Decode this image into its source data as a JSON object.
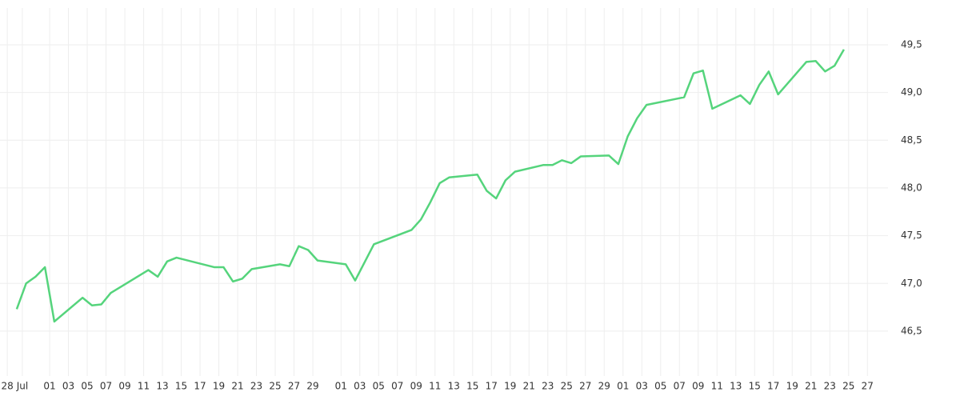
{
  "chart_data": {
    "type": "line",
    "x": [
      -3.5,
      -2.5,
      -1.5,
      -0.5,
      0.5,
      3.5,
      4.5,
      5.5,
      6.5,
      7.5,
      10.5,
      11.5,
      12.5,
      13.5,
      17.5,
      18.5,
      19.5,
      20.5,
      21.5,
      24.5,
      25.5,
      26.5,
      27.5,
      28.5,
      31.5,
      32.5,
      34.5,
      38.5,
      39.5,
      40.5,
      41.5,
      42.5,
      45.5,
      46.5,
      47.5,
      48.5,
      49.5,
      52.5,
      53.5,
      54.5,
      55.5,
      56.5,
      59.5,
      60.5,
      61.5,
      62.5,
      63.5,
      67.5,
      68.5,
      69.5,
      70.5,
      73.5,
      74.5,
      75.5,
      76.5,
      77.5,
      80.5,
      81.5,
      82.5,
      83.5,
      84.5
    ],
    "series": [
      {
        "color": "#55d47c",
        "values": [
          46.73,
          47.0,
          47.07,
          47.17,
          46.6,
          46.85,
          46.77,
          46.78,
          46.9,
          46.96,
          47.14,
          47.07,
          47.23,
          47.27,
          47.17,
          47.17,
          47.02,
          47.05,
          47.15,
          47.2,
          47.18,
          47.39,
          47.35,
          47.24,
          47.2,
          47.03,
          47.41,
          47.56,
          47.67,
          47.85,
          48.05,
          48.11,
          48.14,
          47.97,
          47.89,
          48.08,
          48.17,
          48.24,
          48.24,
          48.29,
          48.26,
          48.33,
          48.34,
          48.25,
          48.54,
          48.73,
          48.87,
          48.95,
          49.2,
          49.23,
          48.83,
          48.97,
          48.88,
          49.08,
          49.22,
          48.98,
          49.32,
          49.33,
          49.22,
          49.28,
          49.45
        ]
      }
    ],
    "xlim": [
      -5.28,
      89.19
    ],
    "xticks": [
      {
        "value": -4.5,
        "label": "28"
      },
      {
        "value": -2.9,
        "label": "Jul"
      },
      {
        "value": 0,
        "label": "01"
      },
      {
        "value": 2,
        "label": "03"
      },
      {
        "value": 4,
        "label": "05"
      },
      {
        "value": 6,
        "label": "07"
      },
      {
        "value": 8,
        "label": "09"
      },
      {
        "value": 10,
        "label": "11"
      },
      {
        "value": 12,
        "label": "13"
      },
      {
        "value": 14,
        "label": "15"
      },
      {
        "value": 16,
        "label": "17"
      },
      {
        "value": 18,
        "label": "19"
      },
      {
        "value": 20,
        "label": "21"
      },
      {
        "value": 22,
        "label": "23"
      },
      {
        "value": 24,
        "label": "25"
      },
      {
        "value": 26,
        "label": "27"
      },
      {
        "value": 28,
        "label": "29"
      },
      {
        "value": 31,
        "label": "01"
      },
      {
        "value": 33,
        "label": "03"
      },
      {
        "value": 35,
        "label": "05"
      },
      {
        "value": 37,
        "label": "07"
      },
      {
        "value": 39,
        "label": "09"
      },
      {
        "value": 41,
        "label": "11"
      },
      {
        "value": 43,
        "label": "13"
      },
      {
        "value": 45,
        "label": "15"
      },
      {
        "value": 47,
        "label": "17"
      },
      {
        "value": 49,
        "label": "19"
      },
      {
        "value": 51,
        "label": "21"
      },
      {
        "value": 53,
        "label": "23"
      },
      {
        "value": 55,
        "label": "25"
      },
      {
        "value": 57,
        "label": "27"
      },
      {
        "value": 59,
        "label": "29"
      },
      {
        "value": 61,
        "label": "01"
      },
      {
        "value": 63,
        "label": "03"
      },
      {
        "value": 65,
        "label": "05"
      },
      {
        "value": 67,
        "label": "07"
      },
      {
        "value": 69,
        "label": "09"
      },
      {
        "value": 71,
        "label": "11"
      },
      {
        "value": 73,
        "label": "13"
      },
      {
        "value": 75,
        "label": "15"
      },
      {
        "value": 77,
        "label": "17"
      },
      {
        "value": 79,
        "label": "19"
      },
      {
        "value": 81,
        "label": "21"
      },
      {
        "value": 83,
        "label": "23"
      },
      {
        "value": 85,
        "label": "25"
      },
      {
        "value": 87,
        "label": "27"
      }
    ],
    "ylim": [
      46.03,
      49.885
    ],
    "yticks": [
      {
        "value": 46.5,
        "label": "46,5"
      },
      {
        "value": 47,
        "label": "47,0"
      },
      {
        "value": 47.5,
        "label": "47,5"
      },
      {
        "value": 48,
        "label": "48,0"
      },
      {
        "value": 48.5,
        "label": "48,5"
      },
      {
        "value": 49,
        "label": "49,0"
      },
      {
        "value": 49.5,
        "label": "49,5"
      }
    ],
    "grid": true
  }
}
